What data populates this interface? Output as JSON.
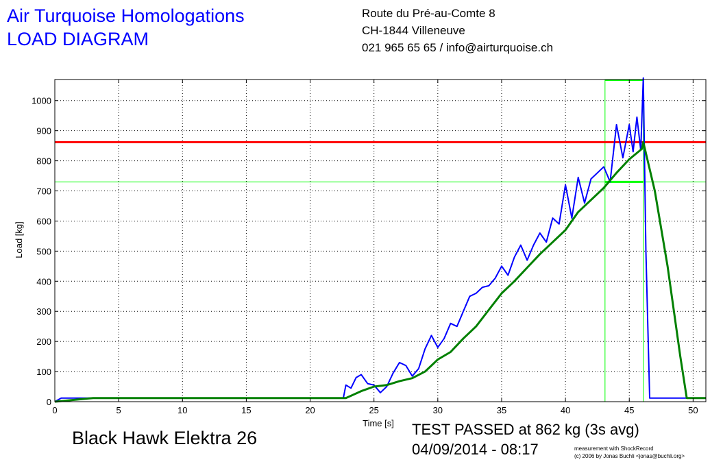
{
  "header": {
    "title_line1": "Air Turquoise Homologations",
    "title_line2": "LOAD DIAGRAM",
    "address_line1": "Route du Pré-au-Comte 8",
    "address_line2": "CH-1844 Villeneuve",
    "contact_line": "021 965 65 65 / info@airturquoise.ch"
  },
  "footer": {
    "glider_name": "Black Hawk Elektra 26",
    "result": "TEST PASSED at 862 kg (3s avg)",
    "datetime": "04/09/2014 - 08:17",
    "credit_line1": "measurement with ShockRecord",
    "credit_line2": "(c) 2006 by Jonas Buchli <jonas@buchli.org>"
  },
  "chart_data": {
    "type": "line",
    "xlabel": "Time [s]",
    "ylabel": "Load [kg]",
    "xlim": [
      0,
      51
    ],
    "ylim": [
      0,
      1070
    ],
    "xticks": [
      0,
      5,
      10,
      15,
      20,
      25,
      30,
      35,
      40,
      45,
      50
    ],
    "yticks": [
      0,
      100,
      200,
      300,
      400,
      500,
      600,
      700,
      800,
      900,
      1000
    ],
    "grid": true,
    "colors": {
      "raw": "#0000ff",
      "avg": "#008000",
      "limit": "#ff0000",
      "marker": "#00ff00"
    },
    "reference_lines": {
      "limit_load": 862,
      "threshold_load": 730,
      "window_start_time": 43.1,
      "window_end_time": 46.1
    },
    "series": [
      {
        "x": [
          0,
          0.5,
          3,
          10,
          20,
          22.6,
          22.8,
          23.2,
          23.6,
          24,
          24.5,
          25,
          25.5,
          26,
          26.5,
          27,
          27.5,
          28,
          28.5,
          29,
          29.5,
          30,
          30.5,
          31,
          31.5,
          32,
          32.5,
          33,
          33.5,
          34,
          34.5,
          35,
          35.5,
          36,
          36.5,
          37,
          37.5,
          38,
          38.5,
          39,
          39.5,
          40,
          40.5,
          41,
          41.5,
          42,
          42.5,
          43,
          43.5,
          44,
          44.5,
          45,
          45.3,
          45.6,
          45.9,
          46.1,
          46.3,
          46.6,
          47,
          49,
          51
        ],
        "values": [
          0,
          12,
          12,
          12,
          12,
          12,
          55,
          45,
          80,
          90,
          60,
          55,
          30,
          50,
          95,
          130,
          120,
          85,
          110,
          175,
          220,
          180,
          210,
          260,
          250,
          300,
          350,
          360,
          380,
          385,
          410,
          450,
          420,
          480,
          520,
          470,
          520,
          560,
          530,
          610,
          590,
          720,
          610,
          745,
          660,
          740,
          760,
          780,
          730,
          920,
          810,
          920,
          830,
          945,
          835,
          1075,
          500,
          12,
          12,
          12,
          12
        ]
      },
      {
        "x": [
          0,
          3,
          10,
          20,
          22.8,
          24,
          25,
          26,
          27,
          28,
          29,
          30,
          31,
          32,
          33,
          34,
          35,
          36,
          37,
          38,
          39,
          40,
          41,
          42,
          43,
          44,
          45,
          46,
          46.1,
          47,
          48,
          49,
          49.5,
          51
        ],
        "values": [
          0,
          12,
          12,
          12,
          12,
          35,
          50,
          55,
          68,
          78,
          100,
          140,
          165,
          210,
          250,
          305,
          360,
          400,
          445,
          490,
          530,
          570,
          630,
          670,
          710,
          760,
          805,
          840,
          862,
          700,
          450,
          150,
          12,
          12
        ]
      }
    ]
  }
}
